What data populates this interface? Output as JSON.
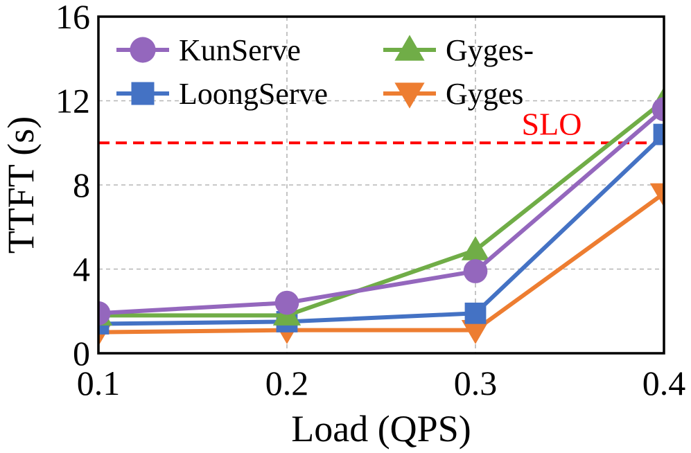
{
  "chart_data": {
    "type": "line",
    "title": "",
    "xlabel": "Load (QPS)",
    "ylabel": "TTFT (s)",
    "x": [
      0.1,
      0.2,
      0.3,
      0.4
    ],
    "x_tick_labels": [
      "0.1",
      "0.2",
      "0.3",
      "0.4"
    ],
    "y_ticks": [
      0,
      4,
      8,
      12,
      16
    ],
    "y_tick_labels": [
      "0",
      "4",
      "8",
      "12",
      "16"
    ],
    "xlim": [
      0.1,
      0.4
    ],
    "ylim": [
      0,
      16
    ],
    "grid": true,
    "legend_position": "top",
    "series": [
      {
        "name": "KunServe",
        "marker": "circle",
        "color": "#9467bd",
        "values": [
          1.9,
          2.4,
          3.9,
          11.6
        ]
      },
      {
        "name": "LoongServe",
        "marker": "square",
        "color": "#4472c4",
        "values": [
          1.4,
          1.5,
          1.9,
          10.4
        ]
      },
      {
        "name": "Gyges-",
        "marker": "triangle-up",
        "color": "#70ad47",
        "values": [
          1.8,
          1.8,
          4.9,
          12.0
        ]
      },
      {
        "name": "Gyges",
        "marker": "triangle-down",
        "color": "#ed7d31",
        "values": [
          1.0,
          1.1,
          1.1,
          7.6
        ]
      }
    ],
    "reference_lines": [
      {
        "label": "SLO",
        "y": 10,
        "color": "#ff0000",
        "style": "dashed"
      }
    ]
  }
}
